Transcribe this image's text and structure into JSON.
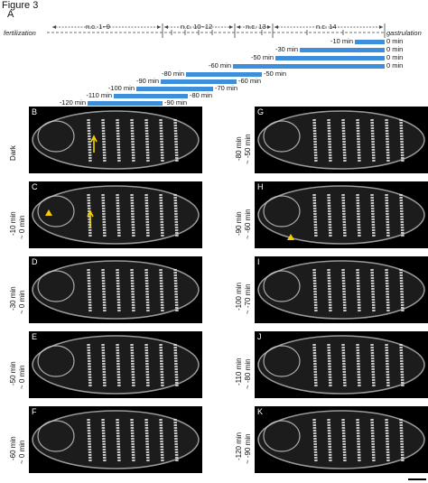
{
  "figure_title": "Figure 3",
  "panel_a": {
    "letter": "A",
    "start_label": "fertilization",
    "end_label": "gastrulation",
    "stages": [
      "n.c. 1~9",
      "n.c. 10~12",
      "n.c. 13",
      "n.c. 14"
    ],
    "exposure_bars": [
      {
        "start": "-10 min",
        "end": "0 min"
      },
      {
        "start": "-30 min",
        "end": "0 min"
      },
      {
        "start": "-50 min",
        "end": "0 min"
      },
      {
        "start": "-60 min",
        "end": "0 min"
      },
      {
        "start": "-80 min",
        "end": "-50 min"
      },
      {
        "start": "-90 min",
        "end": "-60 min"
      },
      {
        "start": "-100 min",
        "end": "-70 min"
      },
      {
        "start": "-110 min",
        "end": "-80 min"
      },
      {
        "start": "-120 min",
        "end": "-90 min"
      }
    ],
    "bar_color": "#3d8fdc"
  },
  "panels": [
    {
      "letter": "B",
      "label_1": "Dark",
      "label_2": "",
      "annotation": "arrow"
    },
    {
      "letter": "C",
      "label_1": "-10 min",
      "label_2": "~ 0 min",
      "annotation": "arrow-arrowhead"
    },
    {
      "letter": "D",
      "label_1": "-30 min",
      "label_2": "~ 0 min",
      "annotation": ""
    },
    {
      "letter": "E",
      "label_1": "-50 min",
      "label_2": "~ 0 min",
      "annotation": ""
    },
    {
      "letter": "F",
      "label_1": "-60 min",
      "label_2": "~ 0 min",
      "annotation": ""
    },
    {
      "letter": "G",
      "label_1": "-80 min",
      "label_2": "~ -50 min",
      "annotation": ""
    },
    {
      "letter": "H",
      "label_1": "-90 min",
      "label_2": "~ -60 min",
      "annotation": "arrowhead"
    },
    {
      "letter": "I",
      "label_1": "-100 min",
      "label_2": "~ -70 min",
      "annotation": ""
    },
    {
      "letter": "J",
      "label_1": "-110 min",
      "label_2": "~ -80 min",
      "annotation": ""
    },
    {
      "letter": "K",
      "label_1": "-120 min",
      "label_2": "~ -90 min",
      "annotation": ""
    }
  ],
  "annotation_color": "#f5d000"
}
